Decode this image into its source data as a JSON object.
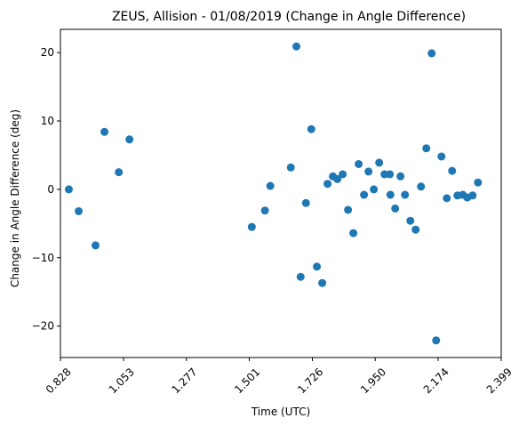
{
  "chart_data": {
    "type": "scatter",
    "title": "ZEUS, Allision - 01/08/2019 (Change in Angle Difference)",
    "xlabel": "Time (UTC)",
    "ylabel": "Change in Angle Difference (deg)",
    "xlim": [
      0.828,
      2.399
    ],
    "ylim": [
      -24.6,
      23.4
    ],
    "xticks": [
      0.828,
      1.053,
      1.277,
      1.501,
      1.726,
      1.95,
      2.174,
      2.399
    ],
    "xtick_labels": [
      "0.828",
      "1.053",
      "1.277",
      "1.501",
      "1.726",
      "1.950",
      "2.174",
      "2.399"
    ],
    "yticks": [
      -20,
      -10,
      0,
      10,
      20
    ],
    "ytick_labels": [
      "−20",
      "−10",
      "0",
      "10",
      "20"
    ],
    "grid": false,
    "marker_color": "#1f77b4",
    "points": [
      {
        "x": 0.858,
        "y": 0.0
      },
      {
        "x": 0.893,
        "y": -3.2
      },
      {
        "x": 0.953,
        "y": -8.2
      },
      {
        "x": 0.985,
        "y": 8.4
      },
      {
        "x": 1.036,
        "y": 2.5
      },
      {
        "x": 1.074,
        "y": 7.3
      },
      {
        "x": 1.51,
        "y": -5.5
      },
      {
        "x": 1.557,
        "y": -3.1
      },
      {
        "x": 1.576,
        "y": 0.5
      },
      {
        "x": 1.649,
        "y": 3.2
      },
      {
        "x": 1.669,
        "y": 20.9
      },
      {
        "x": 1.684,
        "y": -12.8
      },
      {
        "x": 1.703,
        "y": -2.0
      },
      {
        "x": 1.722,
        "y": 8.8
      },
      {
        "x": 1.742,
        "y": -11.3
      },
      {
        "x": 1.761,
        "y": -13.7
      },
      {
        "x": 1.78,
        "y": 0.8
      },
      {
        "x": 1.799,
        "y": 1.9
      },
      {
        "x": 1.815,
        "y": 1.5
      },
      {
        "x": 1.834,
        "y": 2.2
      },
      {
        "x": 1.853,
        "y": -3.0
      },
      {
        "x": 1.872,
        "y": -6.4
      },
      {
        "x": 1.891,
        "y": 3.7
      },
      {
        "x": 1.91,
        "y": -0.8
      },
      {
        "x": 1.926,
        "y": 2.6
      },
      {
        "x": 1.945,
        "y": 0.0
      },
      {
        "x": 1.964,
        "y": 3.9
      },
      {
        "x": 1.983,
        "y": 2.2
      },
      {
        "x": 2.002,
        "y": 2.2
      },
      {
        "x": 2.004,
        "y": -0.8
      },
      {
        "x": 2.021,
        "y": -2.8
      },
      {
        "x": 2.04,
        "y": 1.9
      },
      {
        "x": 2.056,
        "y": -0.8
      },
      {
        "x": 2.075,
        "y": -4.6
      },
      {
        "x": 2.094,
        "y": -5.9
      },
      {
        "x": 2.113,
        "y": 0.4
      },
      {
        "x": 2.132,
        "y": 6.0
      },
      {
        "x": 2.151,
        "y": 19.9
      },
      {
        "x": 2.167,
        "y": -22.1
      },
      {
        "x": 2.186,
        "y": 4.8
      },
      {
        "x": 2.205,
        "y": -1.3
      },
      {
        "x": 2.224,
        "y": 2.7
      },
      {
        "x": 2.243,
        "y": -0.9
      },
      {
        "x": 2.262,
        "y": -0.8
      },
      {
        "x": 2.278,
        "y": -1.2
      },
      {
        "x": 2.297,
        "y": -0.9
      },
      {
        "x": 2.316,
        "y": 1.0
      }
    ]
  }
}
